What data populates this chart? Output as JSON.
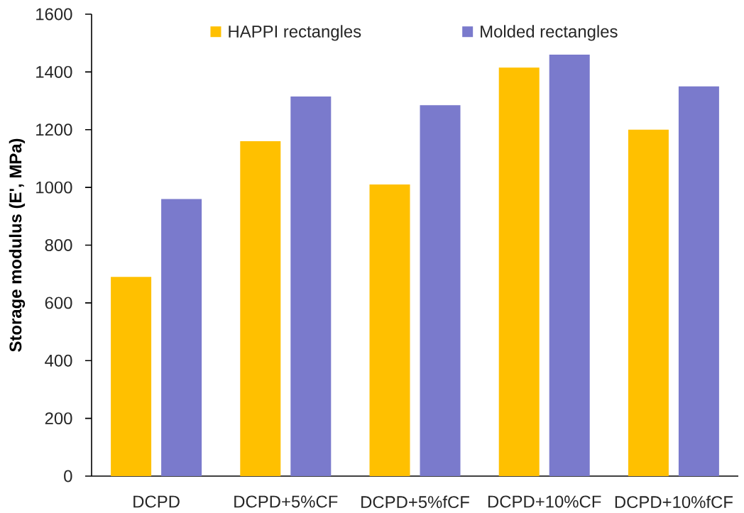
{
  "chart_data": {
    "type": "bar",
    "ylabel": "Storage modulus (E', MPa)",
    "categories": [
      "DCPD",
      "DCPD+5%CF",
      "DCPD+5%fCF",
      "DCPD+10%CF",
      "DCPD+10%fCF"
    ],
    "series": [
      {
        "name": "HAPPI rectangles",
        "color": "#ffc000",
        "values": [
          690,
          1160,
          1010,
          1415,
          1200
        ]
      },
      {
        "name": "Molded rectangles",
        "color": "#7a7acc",
        "values": [
          960,
          1315,
          1285,
          1460,
          1350
        ]
      }
    ],
    "ylim": [
      0,
      1600
    ],
    "yticks": [
      0,
      200,
      400,
      600,
      800,
      1000,
      1200,
      1400,
      1600
    ],
    "legend": "top"
  }
}
